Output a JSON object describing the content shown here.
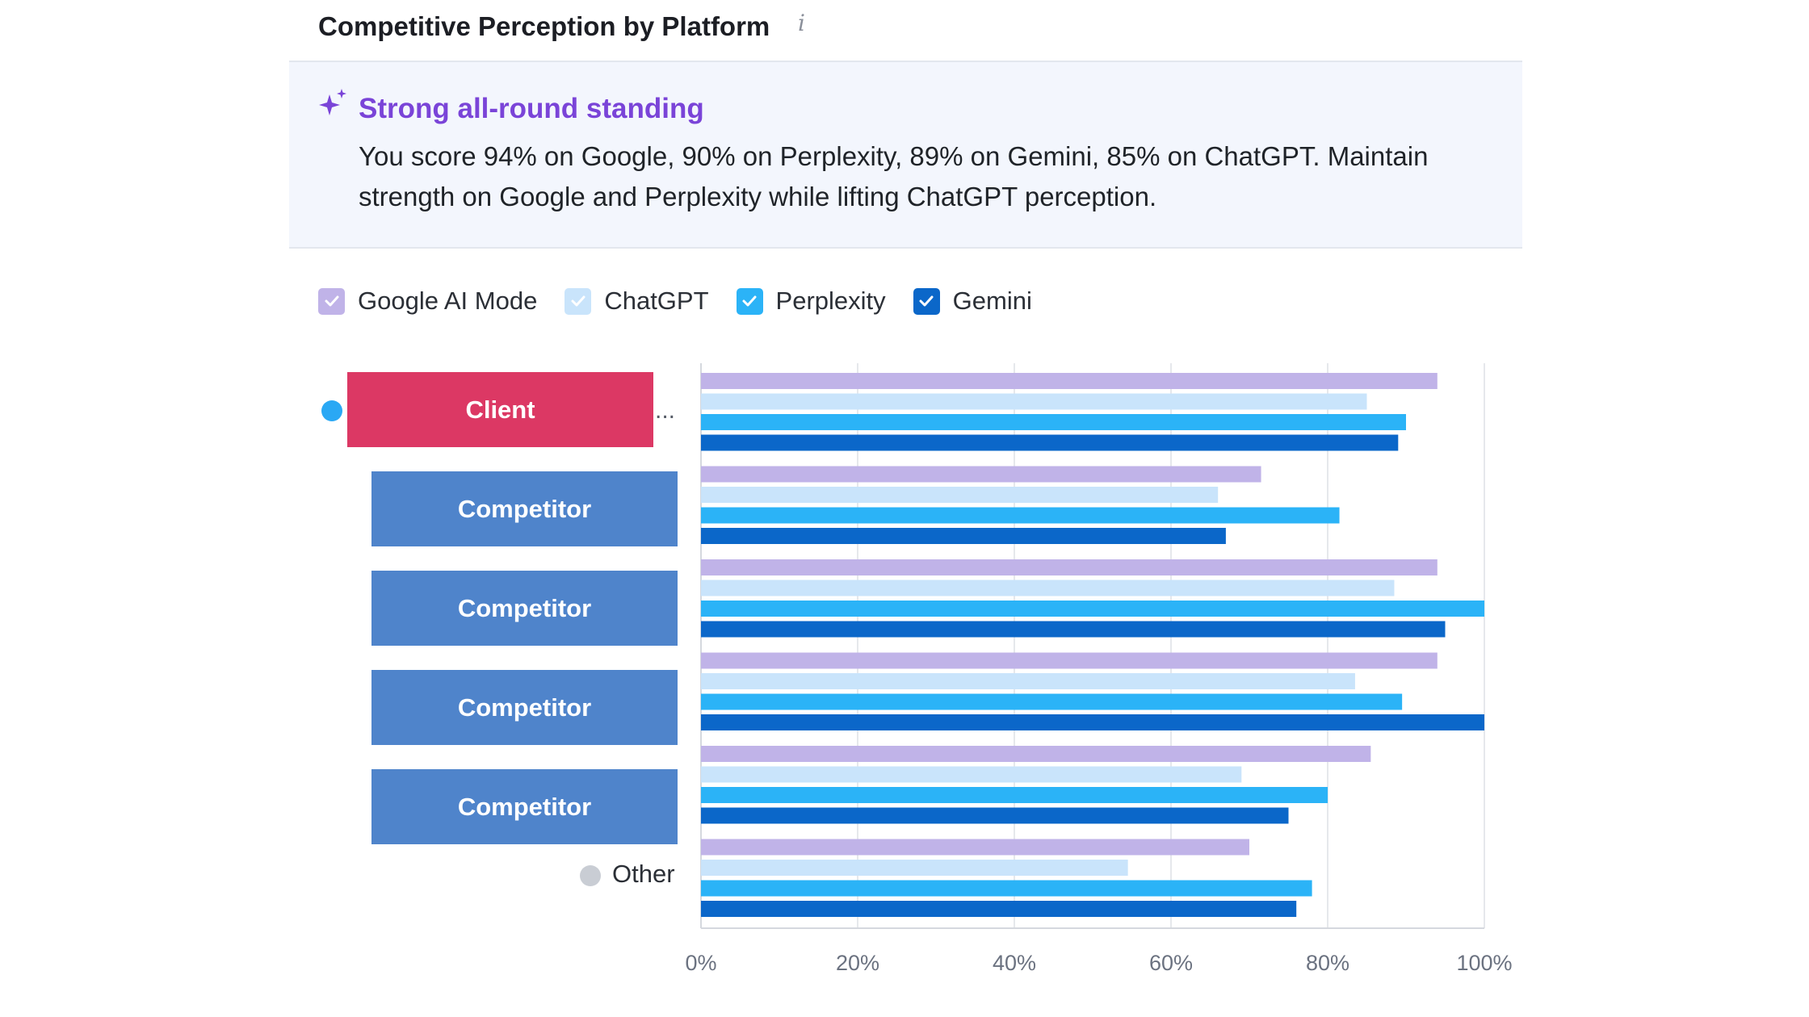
{
  "header": {
    "title": "Competitive Perception by Platform",
    "info_icon": "info-icon"
  },
  "insight": {
    "icon": "sparkle-icon",
    "heading": "Strong all-round standing",
    "body": "You score 94% on Google, 90% on Perplexity, 89% on Gemini, 85% on ChatGPT. Maintain strength on Google and Perplexity while lifting ChatGPT perception."
  },
  "legend": [
    {
      "label": "Google AI Mode",
      "color": "#c0b3e8",
      "checked": true
    },
    {
      "label": "ChatGPT",
      "color": "#c9e4fb",
      "checked": true
    },
    {
      "label": "Perplexity",
      "color": "#2bb3f7",
      "checked": true
    },
    {
      "label": "Gemini",
      "color": "#0b67c9",
      "checked": true
    }
  ],
  "rows": {
    "client": {
      "label": "Client",
      "color": "#dc3864",
      "more": "..."
    },
    "competitor_label": "Competitor",
    "competitor_color": "#4f84cb",
    "other": {
      "label": "Other"
    }
  },
  "chart_data": {
    "type": "bar",
    "orientation": "horizontal",
    "categories": [
      "Client",
      "Competitor",
      "Competitor",
      "Competitor",
      "Competitor",
      "Other"
    ],
    "series": [
      {
        "name": "Google AI Mode",
        "color": "#c0b3e8",
        "values": [
          94,
          71.5,
          94,
          94,
          85.5,
          70
        ]
      },
      {
        "name": "ChatGPT",
        "color": "#c9e4fb",
        "values": [
          85,
          66,
          88.5,
          83.5,
          69,
          54.5
        ]
      },
      {
        "name": "Perplexity",
        "color": "#2bb3f7",
        "values": [
          90,
          81.5,
          100,
          89.5,
          80,
          78
        ]
      },
      {
        "name": "Gemini",
        "color": "#0b67c9",
        "values": [
          89,
          67,
          95,
          100,
          75,
          76
        ]
      }
    ],
    "x_ticks": [
      "0%",
      "20%",
      "40%",
      "60%",
      "80%",
      "100%"
    ],
    "xlim": [
      0,
      100
    ],
    "grid": true
  }
}
